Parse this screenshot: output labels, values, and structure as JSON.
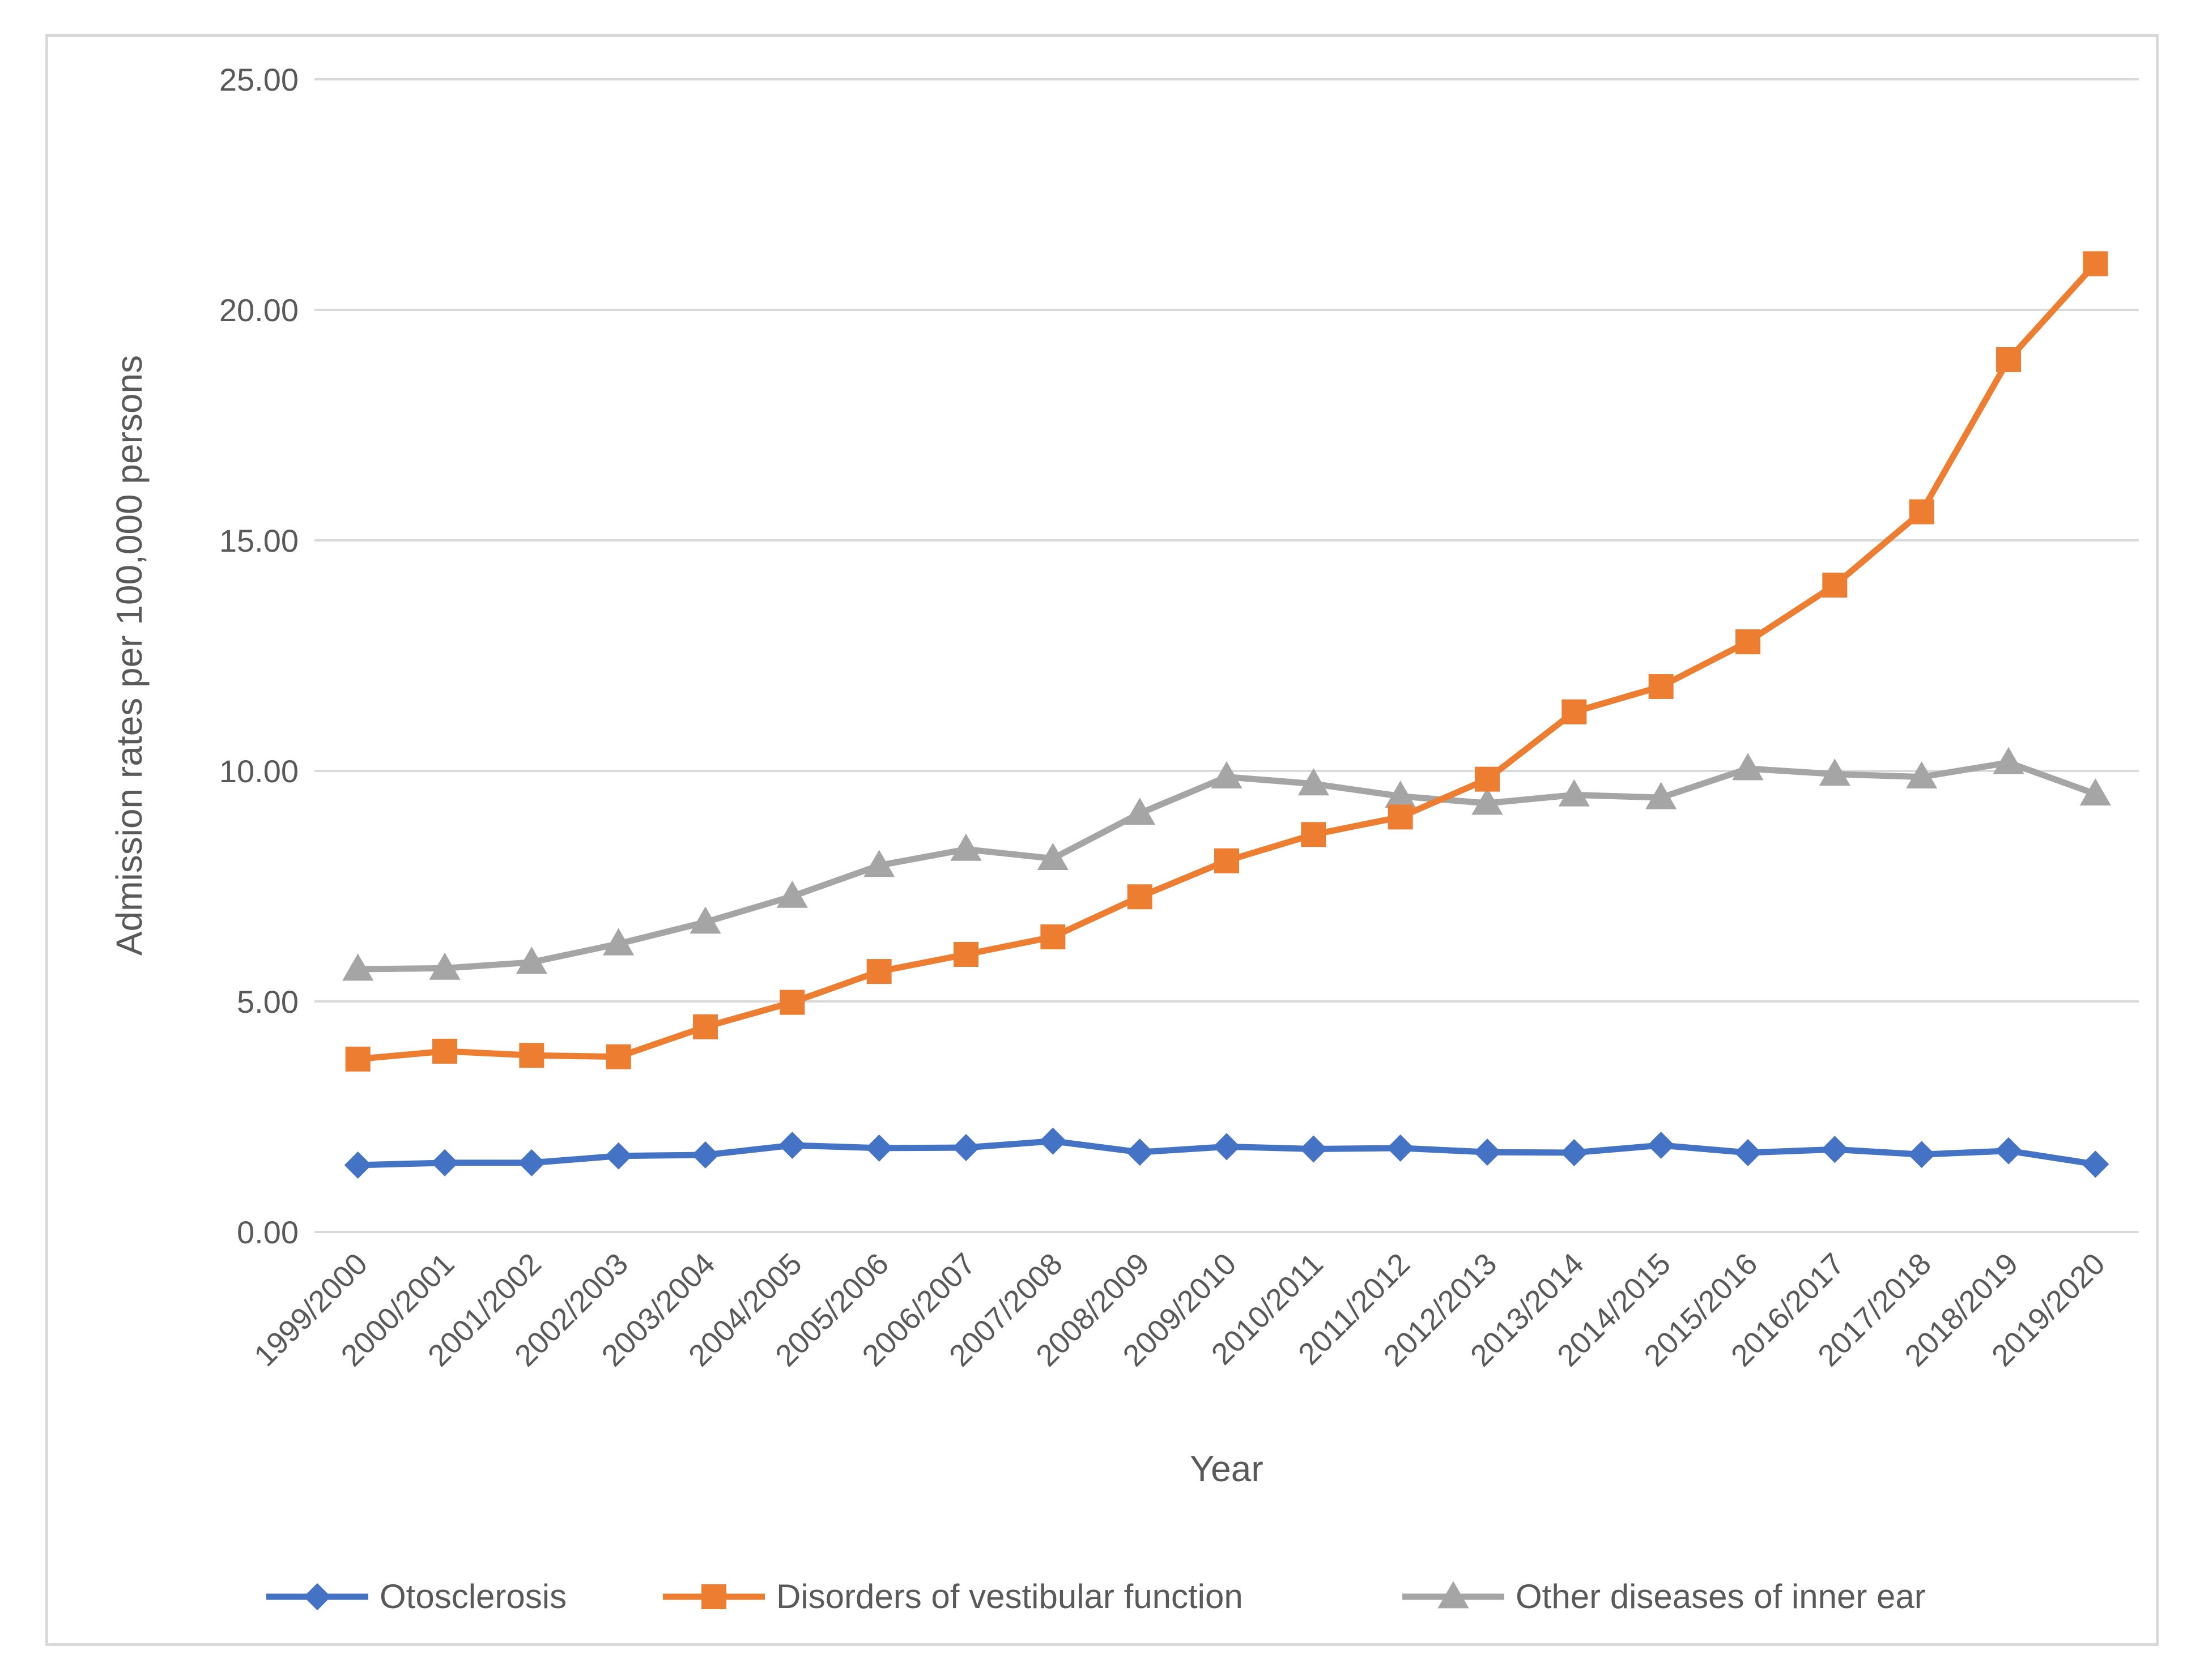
{
  "chart_data": {
    "type": "line",
    "title": "",
    "xlabel": "Year",
    "ylabel": "Admission rates per 100,000 persons",
    "ylim": [
      0,
      25
    ],
    "yticks": [
      "0.00",
      "5.00",
      "10.00",
      "15.00",
      "20.00",
      "25.00"
    ],
    "ytick_values": [
      0,
      5,
      10,
      15,
      20,
      25
    ],
    "grid": true,
    "legend_position": "bottom",
    "categories": [
      "1999/2000",
      "2000/2001",
      "2001/2002",
      "2002/2003",
      "2003/2004",
      "2004/2005",
      "2005/2006",
      "2006/2007",
      "2007/2008",
      "2008/2009",
      "2009/2010",
      "2010/2011",
      "2011/2012",
      "2012/2013",
      "2013/2014",
      "2014/2015",
      "2015/2016",
      "2016/2017",
      "2017/2018",
      "2018/2019",
      "2019/2020"
    ],
    "series": [
      {
        "name": "Otosclerosis",
        "color": "#4472c4",
        "marker": "diamond",
        "values": [
          1.45,
          1.5,
          1.5,
          1.65,
          1.67,
          1.88,
          1.82,
          1.83,
          1.97,
          1.73,
          1.85,
          1.8,
          1.82,
          1.73,
          1.72,
          1.88,
          1.72,
          1.79,
          1.68,
          1.76,
          1.47
        ]
      },
      {
        "name": "Disorders of vestibular function",
        "color": "#ed7d31",
        "marker": "square",
        "values": [
          3.75,
          3.92,
          3.83,
          3.8,
          4.45,
          4.98,
          5.65,
          6.02,
          6.4,
          7.27,
          8.05,
          8.62,
          9.0,
          9.82,
          11.28,
          11.83,
          12.8,
          14.03,
          15.62,
          18.92,
          21.0
        ]
      },
      {
        "name": "Other diseases of inner ear",
        "color": "#a5a5a5",
        "marker": "triangle",
        "values": [
          5.7,
          5.72,
          5.85,
          6.25,
          6.72,
          7.28,
          7.95,
          8.3,
          8.1,
          9.08,
          9.87,
          9.72,
          9.45,
          9.3,
          9.48,
          9.42,
          10.05,
          9.93,
          9.87,
          10.18,
          9.5
        ]
      }
    ]
  }
}
